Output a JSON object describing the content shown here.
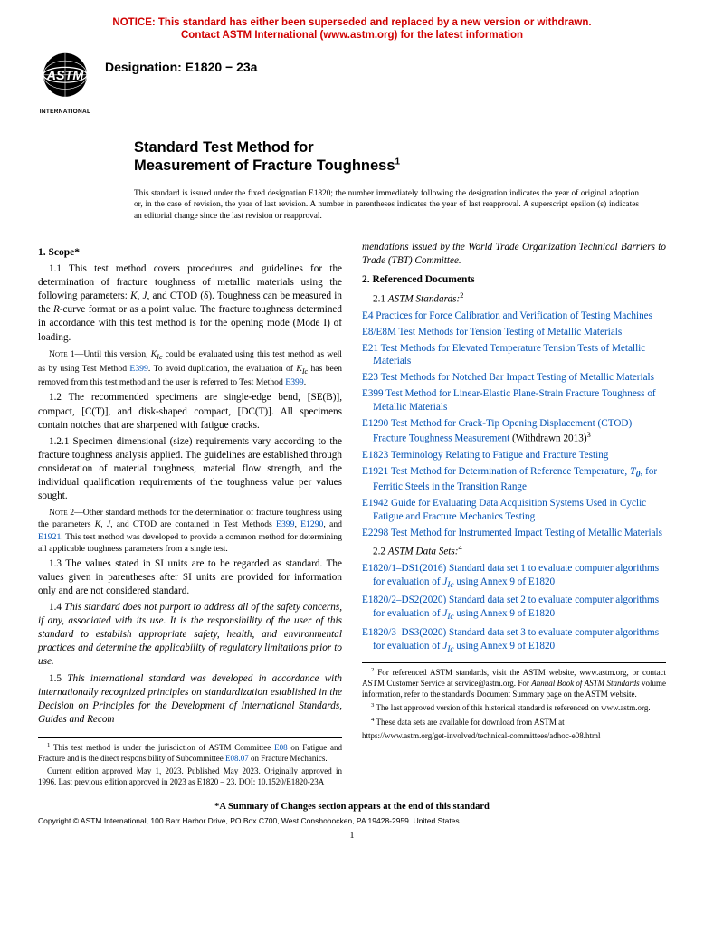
{
  "notice_line1": "NOTICE: This standard has either been superseded and replaced by a new version or withdrawn.",
  "notice_line2": "Contact ASTM International (www.astm.org) for the latest information",
  "logo_text": "ASTM",
  "logo_sub": "INTERNATIONAL",
  "designation_label": "Designation: E1820 − 23a",
  "title_pre": "Standard Test Method for",
  "title_main": "Measurement of Fracture Toughness",
  "title_sup": "1",
  "issuance": "This standard is issued under the fixed designation E1820; the number immediately following the designation indicates the year of original adoption or, in the case of revision, the year of last revision. A number in parentheses indicates the year of last reapproval. A superscript epsilon (ε) indicates an editorial change since the last revision or reapproval.",
  "scope_head": "1. Scope*",
  "p1_1": "1.1 This test method covers procedures and guidelines for the determination of fracture toughness of metallic materials using the following parameters: ",
  "p1_1_params": "K, J,",
  "p1_1_b": " and CTOD (δ). Toughness can be measured in the ",
  "p1_1_r": "R",
  "p1_1_c": "-curve format or as a point value. The fracture toughness determined in accordance with this test method is for the opening mode (Mode I) of loading.",
  "note1_label": "Note 1—",
  "note1_a": "Until this version, ",
  "note1_kic": "K",
  "note1_ic": "Ic",
  "note1_b": " could be evaluated using this test method as well as by using Test Method ",
  "note1_e399a": "E399",
  "note1_c": ". To avoid duplication, the evaluation of ",
  "note1_d": " has been removed from this test method and the user is referred to Test Method ",
  "note1_e399b": "E399",
  "note1_e": ".",
  "p1_2": "1.2 The recommended specimens are single-edge bend, [SE(B)], compact, [C(T)], and disk-shaped compact, [DC(T)]. All specimens contain notches that are sharpened with fatigue cracks.",
  "p1_2_1": "1.2.1 Specimen dimensional (size) requirements vary according to the fracture toughness analysis applied. The guidelines are established through consideration of material toughness, material flow strength, and the individual qualification requirements of the toughness value per values sought.",
  "note2_label": "Note 2—",
  "note2_a": "Other standard methods for the determination of fracture toughness using the parameters ",
  "note2_params": "K, J,",
  "note2_b": " and CTOD are contained in Test Methods ",
  "note2_e399": "E399",
  "note2_c": ", ",
  "note2_e1290": "E1290",
  "note2_d": ", and ",
  "note2_e1921": "E1921",
  "note2_e": ". This test method was developed to provide a common method for determining all applicable toughness parameters from a single test.",
  "p1_3": "1.3 The values stated in SI units are to be regarded as standard. The values given in parentheses after SI units are provided for information only and are not considered standard.",
  "p1_4": "1.4 This standard does not purport to address all of the safety concerns, if any, associated with its use. It is the responsibility of the user of this standard to establish appropriate safety, health, and environmental practices and determine the applicability of regulatory limitations prior to use.",
  "p1_5a": "1.5 This international standard was developed in accordance with internationally recognized principles on standardization established in the Decision on Principles for the Development of International Standards, Guides and Recom",
  "p1_5b": "mendations issued by the World Trade Organization Technical Barriers to Trade (TBT) Committee.",
  "refdoc_head": "2. Referenced Documents",
  "ref2_1": "2.1 ",
  "ref2_1_it": "ASTM Standards:",
  "ref2_1_sup": "2",
  "refs": [
    {
      "code": "E4",
      "text": " Practices for Force Calibration and Verification of Testing Machines"
    },
    {
      "code": "E8/E8M",
      "text": " Test Methods for Tension Testing of Metallic Materials"
    },
    {
      "code": "E21",
      "text": " Test Methods for Elevated Temperature Tension Tests of Metallic Materials"
    },
    {
      "code": "E23",
      "text": " Test Methods for Notched Bar Impact Testing of Metallic Materials"
    },
    {
      "code": "E399",
      "text": " Test Method for Linear-Elastic Plane-Strain Fracture Toughness of Metallic Materials"
    }
  ],
  "ref_e1290_code": "E1290",
  "ref_e1290_text": " Test Method for Crack-Tip Opening Displacement (CTOD) Fracture Toughness Measurement",
  "ref_e1290_wd": " (Withdrawn 2013)",
  "ref_e1290_sup": "3",
  "refs2": [
    {
      "code": "E1823",
      "text": " Terminology Relating to Fatigue and Fracture Testing"
    }
  ],
  "ref_e1921_code": "E1921",
  "ref_e1921_a": " Test Method for Determination of Reference Temperature, ",
  "ref_e1921_t0": "T",
  "ref_e1921_sub": "0",
  "ref_e1921_b": ", for Ferritic Steels in the Transition Range",
  "refs3": [
    {
      "code": "E1942",
      "text": " Guide for Evaluating Data Acquisition Systems Used in Cyclic Fatigue and Fracture Mechanics Testing"
    },
    {
      "code": "E2298",
      "text": " Test Method for Instrumented Impact Testing of Metallic Materials"
    }
  ],
  "ref2_2": "2.2 ",
  "ref2_2_it": "ASTM Data Sets:",
  "ref2_2_sup": "4",
  "ds1_a": "E1820/1–DS1(2016) Standard data set 1 to evaluate computer algorithms for evaluation of ",
  "ds_j": "J",
  "ds_ic": "Ic",
  "ds1_b": " using Annex 9 of E1820",
  "ds2_a": "E1820/2–DS2(2020) Standard data set 2 to evaluate computer algorithms for evaluation of ",
  "ds2_b": " using Annex 9 of E1820",
  "ds3_a": "E1820/3–DS3(2020) Standard data set 3 to evaluate computer algorithms for evaluation of ",
  "ds3_b": " using Annex 9 of E1820",
  "fn1_a": " This test method is under the jurisdiction of ASTM Committee ",
  "fn1_e08": "E08",
  "fn1_b": " on Fatigue and Fracture and is the direct responsibility of Subcommittee ",
  "fn1_e0807": "E08.07",
  "fn1_c": " on Fracture Mechanics.",
  "fn1_d": "Current edition approved May 1, 2023. Published May 2023. Originally approved in 1996. Last previous edition approved in 2023 as E1820 – 23. DOI: 10.1520/E1820-23A",
  "fn2_a": " For referenced ASTM standards, visit the ASTM website, www.astm.org, or contact ASTM Customer Service at service@astm.org. For ",
  "fn2_it": "Annual Book of ASTM Standards",
  "fn2_b": " volume information, refer to the standard's Document Summary page on the ASTM website.",
  "fn3": " The last approved version of this historical standard is referenced on www.astm.org.",
  "fn4_a": " These data sets are available for download from ASTM at",
  "fn4_b": "https://www.astm.org/get-involved/technical-committees/adhoc-e08.html",
  "summary": "*A Summary of Changes section appears at the end of this standard",
  "copyright": "Copyright © ASTM International, 100 Barr Harbor Drive, PO Box C700, West Conshohocken, PA 19428-2959. United States",
  "pagenum": "1",
  "colors": {
    "notice": "#d00000",
    "link": "#0050b3",
    "text": "#000000",
    "bg": "#ffffff"
  }
}
